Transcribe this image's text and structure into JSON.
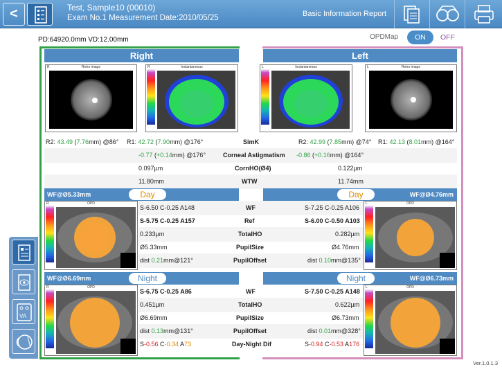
{
  "app": {
    "title_line1": "Test, Sample10 (00010)",
    "title_line2": "Exam No.1 Measurement Date:2010/05/25",
    "report_title": "Basic Information Report",
    "back_label": "<",
    "version": "Ver.1.0.1.3"
  },
  "header": {
    "pd_vd": "PD:64920.0mm    VD:12.00mm",
    "opdmap_label": "OPDMap",
    "opdmap_on": "ON",
    "opdmap_off": "OFF"
  },
  "eyes": {
    "right": "Right",
    "left": "Left"
  },
  "images": {
    "r_letter": "R",
    "l_letter": "L",
    "retro": "Retro image",
    "instant": "Instantaneous",
    "opd": "OPD"
  },
  "k": {
    "r2_label": "R2: ",
    "r2_val": "43.49",
    "r2_open": " (",
    "r2_mm": "7.76",
    "r2_close": "mm) @86°",
    "r1_label": "R1: ",
    "r1_val": "42.72",
    "r1_open": " (",
    "r1_mm": "7.90",
    "r1_close": "mm) @176°",
    "simk": "SimK",
    "l_r2_label": "R2: ",
    "l_r2_val": "42.99",
    "l_r2_open": " (",
    "l_r2_mm": "7.85",
    "l_r2_close": "mm) @74°",
    "l_r1_label": "R1: ",
    "l_r1_val": "42.13",
    "l_r1_open": " (",
    "l_r1_mm": "8.01",
    "l_r1_close": "mm) @164°"
  },
  "rows": {
    "astig_r_val": "-0.77",
    "astig_r_open": " (",
    "astig_r_mm": "+0.14",
    "astig_r_close": "mm) @176°",
    "astig_label": "Corneal Astigmatism",
    "astig_l_val": "-0.86",
    "astig_l_open": " (",
    "astig_l_mm": "+0.16",
    "astig_l_close": "mm) @164°",
    "cornho_r": "0.097µm",
    "cornho_label": "CornHO(Ø4)",
    "cornho_l": "0.122µm",
    "wtw_r": "11.80mm",
    "wtw_label": "WTW",
    "wtw_l": "11.74mm"
  },
  "day": {
    "wf_r": "WF@Ø5.33mm",
    "pill_r": "Day",
    "pill_l": "Day",
    "wf_l": "WF@Ø4.76mm",
    "wf_r_val": "S-6.50 C-0.25 A148",
    "wf_label": "WF",
    "wf_l_val": "S-7.25 C-0.25 A106",
    "ref_r": "S-5.75 C-0.25 A157",
    "ref_label": "Ref",
    "ref_l": "S-6.00 C-0.50 A103",
    "tho_r": "0.233µm",
    "tho_label": "TotalHO",
    "tho_l": "0.282µm",
    "ps_r": "Ø5.33mm",
    "ps_label": "PupilSize",
    "ps_l": "Ø4.76mm",
    "po_r_a": "dist ",
    "po_r_b": "0.21",
    "po_r_c": "mm@121°",
    "po_label": "PupilOffset",
    "po_l_a": "dist ",
    "po_l_b": "0.10",
    "po_l_c": "mm@135°"
  },
  "night": {
    "wf_r": "WF@Ø6.69mm",
    "pill_r": "Night",
    "pill_l": "Night",
    "wf_l": "WF@Ø6.73mm",
    "wf_r_val": "S-6.75 C-0.25 A86",
    "wf_label": "WF",
    "wf_l_val": "S-7.50 C-0.25 A148",
    "tho_r": "0.451µm",
    "tho_label": "TotalHO",
    "tho_l": "0.622µm",
    "ps_r": "Ø6.69mm",
    "ps_label": "PupilSize",
    "ps_l": "Ø6.73mm",
    "po_r_a": "dist ",
    "po_r_b": "0.13",
    "po_r_c": "mm@131°",
    "po_label": "PupilOffset",
    "po_l_a": "dist ",
    "po_l_b": "0.01",
    "po_l_c": "mm@328°",
    "dn_r_s": "S",
    "dn_r_sv": "-0.56",
    "dn_r_c": " C",
    "dn_r_cv": "-0.34",
    "dn_r_a": " A",
    "dn_r_av": "73",
    "dn_label": "Day-Night Dif",
    "dn_l_s": "S",
    "dn_l_sv": "-0.94",
    "dn_l_c": " C",
    "dn_l_cv": "-0.53",
    "dn_l_a": " A",
    "dn_l_av": "176"
  },
  "colors": {
    "accent": "#4f8ac2",
    "right_frame": "#30a146",
    "left_frame": "#d48fbd",
    "green_value": "#30a146",
    "orange_value": "#e08a00"
  },
  "icons": [
    "back-icon",
    "patient-doc-icon",
    "print-preview-icon",
    "binocular-icon",
    "printer-icon",
    "summary-icon",
    "eye-image-icon",
    "va-chart-icon",
    "eye-section-icon"
  ]
}
